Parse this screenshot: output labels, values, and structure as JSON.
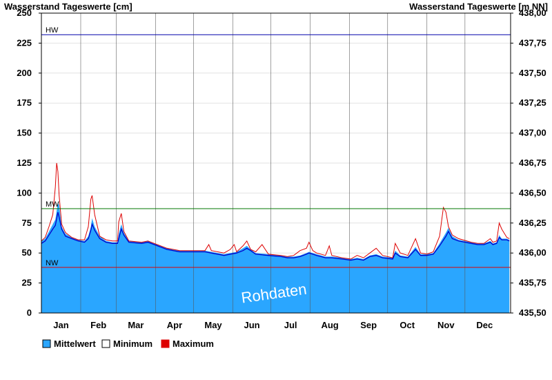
{
  "chart_data": {
    "type": "area",
    "ylabel_left": "Wasserstand Tageswerte [cm]",
    "ylabel_right": "Wasserstand Tageswerte [m NN]",
    "ylim": [
      0,
      250
    ],
    "yticks": [
      0,
      25,
      50,
      75,
      100,
      125,
      150,
      175,
      200,
      225,
      250
    ],
    "right_ylim": [
      435.5,
      438.0
    ],
    "right_yticks": [
      "435,50",
      "435,75",
      "436,00",
      "436,25",
      "436,50",
      "436,75",
      "437,00",
      "437,25",
      "437,50",
      "437,75",
      "438,00"
    ],
    "months": [
      "Jan",
      "Feb",
      "Mar",
      "Apr",
      "May",
      "Jun",
      "Jul",
      "Aug",
      "Sep",
      "Oct",
      "Nov",
      "Dec"
    ],
    "grid": true,
    "legend_position": "bottom-left",
    "legend": [
      {
        "label": "Mittelwert",
        "color": "#2aa6ff"
      },
      {
        "label": "Minimum",
        "color": "#ffffff"
      },
      {
        "label": "Maximum",
        "color": "#dd0000"
      }
    ],
    "reference_lines": [
      {
        "label": "HW",
        "value": 232,
        "color": "#0000aa"
      },
      {
        "label": "MW",
        "value": 87,
        "color": "#007700"
      },
      {
        "label": "NW",
        "value": 38,
        "color": "#dd0000"
      }
    ],
    "watermark": "Rohdaten",
    "x_unit": "day_of_year",
    "mean": [
      [
        1,
        60
      ],
      [
        4,
        62
      ],
      [
        7,
        68
      ],
      [
        10,
        74
      ],
      [
        12,
        78
      ],
      [
        14,
        92
      ],
      [
        15,
        90
      ],
      [
        17,
        72
      ],
      [
        20,
        66
      ],
      [
        25,
        63
      ],
      [
        30,
        61
      ],
      [
        35,
        60
      ],
      [
        38,
        64
      ],
      [
        40,
        72
      ],
      [
        41,
        79
      ],
      [
        43,
        72
      ],
      [
        47,
        64
      ],
      [
        52,
        60
      ],
      [
        57,
        59
      ],
      [
        61,
        59
      ],
      [
        62,
        66
      ],
      [
        64,
        74
      ],
      [
        66,
        67
      ],
      [
        70,
        60
      ],
      [
        80,
        59
      ],
      [
        85,
        60
      ],
      [
        90,
        58
      ],
      [
        100,
        54
      ],
      [
        110,
        52
      ],
      [
        120,
        52
      ],
      [
        130,
        52
      ],
      [
        135,
        51
      ],
      [
        145,
        49
      ],
      [
        155,
        51
      ],
      [
        160,
        54
      ],
      [
        163,
        56
      ],
      [
        166,
        53
      ],
      [
        170,
        50
      ],
      [
        180,
        49
      ],
      [
        190,
        48
      ],
      [
        195,
        47
      ],
      [
        200,
        47
      ],
      [
        205,
        48
      ],
      [
        210,
        50
      ],
      [
        212,
        51
      ],
      [
        215,
        50
      ],
      [
        218,
        49
      ],
      [
        225,
        47
      ],
      [
        230,
        47
      ],
      [
        238,
        46
      ],
      [
        245,
        45
      ],
      [
        250,
        46
      ],
      [
        255,
        45
      ],
      [
        260,
        48
      ],
      [
        265,
        49
      ],
      [
        270,
        47
      ],
      [
        278,
        46
      ],
      [
        280,
        52
      ],
      [
        284,
        48
      ],
      [
        290,
        47
      ],
      [
        296,
        55
      ],
      [
        300,
        49
      ],
      [
        305,
        49
      ],
      [
        310,
        50
      ],
      [
        315,
        58
      ],
      [
        320,
        67
      ],
      [
        322,
        71
      ],
      [
        325,
        64
      ],
      [
        330,
        61
      ],
      [
        340,
        59
      ],
      [
        345,
        58
      ],
      [
        350,
        58
      ],
      [
        355,
        60
      ],
      [
        357,
        58
      ],
      [
        360,
        59
      ],
      [
        362,
        65
      ],
      [
        364,
        62
      ],
      [
        368,
        62
      ],
      [
        370,
        61
      ]
    ],
    "maximum": [
      [
        1,
        60
      ],
      [
        4,
        63
      ],
      [
        7,
        72
      ],
      [
        10,
        82
      ],
      [
        12,
        105
      ],
      [
        13,
        125
      ],
      [
        14,
        118
      ],
      [
        15,
        98
      ],
      [
        17,
        74
      ],
      [
        20,
        67
      ],
      [
        25,
        63
      ],
      [
        30,
        61
      ],
      [
        35,
        61
      ],
      [
        38,
        72
      ],
      [
        40,
        95
      ],
      [
        41,
        98
      ],
      [
        43,
        82
      ],
      [
        47,
        64
      ],
      [
        52,
        61
      ],
      [
        57,
        60
      ],
      [
        61,
        60
      ],
      [
        62,
        76
      ],
      [
        64,
        83
      ],
      [
        66,
        68
      ],
      [
        70,
        60
      ],
      [
        80,
        59
      ],
      [
        85,
        60
      ],
      [
        90,
        58
      ],
      [
        100,
        54
      ],
      [
        110,
        52
      ],
      [
        120,
        52
      ],
      [
        130,
        52
      ],
      [
        133,
        57
      ],
      [
        135,
        52
      ],
      [
        145,
        50
      ],
      [
        150,
        53
      ],
      [
        153,
        57
      ],
      [
        155,
        51
      ],
      [
        160,
        56
      ],
      [
        163,
        60
      ],
      [
        166,
        53
      ],
      [
        170,
        51
      ],
      [
        175,
        57
      ],
      [
        180,
        49
      ],
      [
        190,
        48
      ],
      [
        195,
        47
      ],
      [
        200,
        48
      ],
      [
        205,
        52
      ],
      [
        210,
        54
      ],
      [
        212,
        59
      ],
      [
        215,
        52
      ],
      [
        218,
        50
      ],
      [
        225,
        48
      ],
      [
        228,
        56
      ],
      [
        230,
        48
      ],
      [
        238,
        46
      ],
      [
        245,
        45
      ],
      [
        250,
        48
      ],
      [
        255,
        46
      ],
      [
        260,
        50
      ],
      [
        265,
        54
      ],
      [
        270,
        48
      ],
      [
        278,
        46
      ],
      [
        280,
        58
      ],
      [
        284,
        50
      ],
      [
        290,
        48
      ],
      [
        296,
        62
      ],
      [
        300,
        50
      ],
      [
        305,
        49
      ],
      [
        310,
        51
      ],
      [
        315,
        64
      ],
      [
        318,
        88
      ],
      [
        320,
        84
      ],
      [
        322,
        72
      ],
      [
        325,
        65
      ],
      [
        330,
        62
      ],
      [
        340,
        59
      ],
      [
        345,
        58
      ],
      [
        350,
        58
      ],
      [
        355,
        62
      ],
      [
        357,
        59
      ],
      [
        360,
        60
      ],
      [
        362,
        75
      ],
      [
        364,
        70
      ],
      [
        368,
        63
      ],
      [
        370,
        62
      ]
    ],
    "minimum": [
      [
        1,
        58
      ],
      [
        4,
        60
      ],
      [
        7,
        65
      ],
      [
        10,
        70
      ],
      [
        12,
        73
      ],
      [
        14,
        84
      ],
      [
        15,
        80
      ],
      [
        17,
        70
      ],
      [
        20,
        64
      ],
      [
        25,
        62
      ],
      [
        30,
        60
      ],
      [
        35,
        59
      ],
      [
        38,
        62
      ],
      [
        40,
        69
      ],
      [
        41,
        74
      ],
      [
        43,
        69
      ],
      [
        47,
        62
      ],
      [
        52,
        59
      ],
      [
        57,
        58
      ],
      [
        61,
        58
      ],
      [
        62,
        62
      ],
      [
        64,
        70
      ],
      [
        66,
        65
      ],
      [
        70,
        59
      ],
      [
        80,
        58
      ],
      [
        85,
        59
      ],
      [
        90,
        57
      ],
      [
        100,
        53
      ],
      [
        110,
        51
      ],
      [
        120,
        51
      ],
      [
        130,
        51
      ],
      [
        135,
        50
      ],
      [
        145,
        48
      ],
      [
        155,
        50
      ],
      [
        160,
        52
      ],
      [
        163,
        54
      ],
      [
        166,
        52
      ],
      [
        170,
        49
      ],
      [
        180,
        48
      ],
      [
        190,
        47
      ],
      [
        195,
        46
      ],
      [
        200,
        46
      ],
      [
        205,
        47
      ],
      [
        210,
        49
      ],
      [
        212,
        50
      ],
      [
        215,
        49
      ],
      [
        218,
        48
      ],
      [
        225,
        46
      ],
      [
        230,
        46
      ],
      [
        238,
        45
      ],
      [
        245,
        44
      ],
      [
        250,
        45
      ],
      [
        255,
        44
      ],
      [
        260,
        47
      ],
      [
        265,
        48
      ],
      [
        270,
        46
      ],
      [
        278,
        45
      ],
      [
        280,
        50
      ],
      [
        284,
        47
      ],
      [
        290,
        46
      ],
      [
        296,
        53
      ],
      [
        300,
        48
      ],
      [
        305,
        48
      ],
      [
        310,
        49
      ],
      [
        315,
        56
      ],
      [
        320,
        64
      ],
      [
        322,
        68
      ],
      [
        325,
        62
      ],
      [
        330,
        60
      ],
      [
        340,
        58
      ],
      [
        345,
        57
      ],
      [
        350,
        57
      ],
      [
        355,
        59
      ],
      [
        357,
        57
      ],
      [
        360,
        58
      ],
      [
        362,
        63
      ],
      [
        364,
        61
      ],
      [
        368,
        61
      ],
      [
        370,
        60
      ]
    ]
  }
}
